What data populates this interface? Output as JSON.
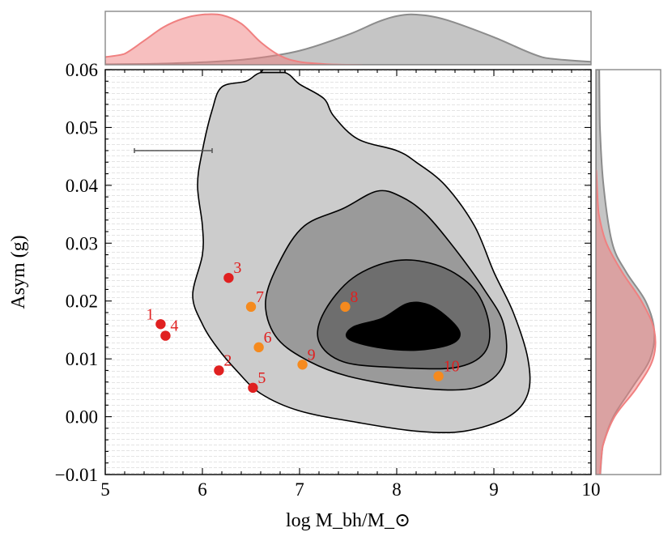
{
  "chart_data": {
    "type": "scatter",
    "title": "",
    "xlabel": "log M_bh/M_⊙",
    "ylabel": "Asym (g)",
    "xlim": [
      5,
      10
    ],
    "ylim": [
      -0.01,
      0.06
    ],
    "x_ticks": [
      "5",
      "6",
      "7",
      "8",
      "9",
      "10"
    ],
    "y_ticks": [
      "−0.01",
      "0.00",
      "0.01",
      "0.02",
      "0.03",
      "0.04",
      "0.05",
      "0.06"
    ],
    "error_bar": {
      "x_from": 5.3,
      "x_to": 6.1,
      "y": 0.046
    },
    "contours": [
      {
        "level": "outer",
        "color": "#cccccc",
        "path": [
          [
            6.6,
            0.0595
          ],
          [
            6.45,
            0.058
          ],
          [
            6.2,
            0.057
          ],
          [
            6.1,
            0.053
          ],
          [
            6.0,
            0.046
          ],
          [
            5.95,
            0.04
          ],
          [
            6.0,
            0.033
          ],
          [
            6.0,
            0.028
          ],
          [
            5.9,
            0.021
          ],
          [
            6.0,
            0.016
          ],
          [
            6.15,
            0.012
          ],
          [
            6.35,
            0.008
          ],
          [
            6.6,
            0.004
          ],
          [
            7.0,
            0.001
          ],
          [
            7.6,
            -0.001
          ],
          [
            8.2,
            -0.0025
          ],
          [
            8.7,
            -0.0025
          ],
          [
            9.15,
            0.0
          ],
          [
            9.35,
            0.004
          ],
          [
            9.35,
            0.01
          ],
          [
            9.2,
            0.018
          ],
          [
            9.0,
            0.025
          ],
          [
            8.8,
            0.033
          ],
          [
            8.5,
            0.04
          ],
          [
            8.2,
            0.044
          ],
          [
            8.0,
            0.046
          ],
          [
            7.6,
            0.048
          ],
          [
            7.35,
            0.052
          ],
          [
            7.25,
            0.055
          ],
          [
            7.0,
            0.0575
          ],
          [
            6.85,
            0.0595
          ]
        ]
      },
      {
        "level": "middle",
        "color": "#9a9a9a",
        "path": [
          [
            7.8,
            0.039
          ],
          [
            7.45,
            0.036
          ],
          [
            7.05,
            0.033
          ],
          [
            6.8,
            0.027
          ],
          [
            6.65,
            0.02
          ],
          [
            6.75,
            0.014
          ],
          [
            7.05,
            0.01
          ],
          [
            7.5,
            0.007
          ],
          [
            8.2,
            0.005
          ],
          [
            8.8,
            0.005
          ],
          [
            9.1,
            0.009
          ],
          [
            9.1,
            0.016
          ],
          [
            8.9,
            0.022
          ],
          [
            8.6,
            0.029
          ],
          [
            8.3,
            0.035
          ],
          [
            8.05,
            0.038
          ]
        ]
      },
      {
        "level": "inner",
        "color": "#6e6e6e",
        "path": [
          [
            8.0,
            0.027
          ],
          [
            7.55,
            0.024
          ],
          [
            7.25,
            0.018
          ],
          [
            7.2,
            0.013
          ],
          [
            7.45,
            0.0095
          ],
          [
            8.0,
            0.0085
          ],
          [
            8.6,
            0.0085
          ],
          [
            8.9,
            0.011
          ],
          [
            8.95,
            0.016
          ],
          [
            8.8,
            0.022
          ],
          [
            8.45,
            0.026
          ]
        ]
      },
      {
        "level": "core",
        "color": "#000000",
        "path": [
          [
            8.1,
            0.0195
          ],
          [
            7.85,
            0.017
          ],
          [
            7.55,
            0.0155
          ],
          [
            7.5,
            0.0135
          ],
          [
            7.8,
            0.012
          ],
          [
            8.2,
            0.0115
          ],
          [
            8.55,
            0.0125
          ],
          [
            8.65,
            0.0145
          ],
          [
            8.5,
            0.0175
          ],
          [
            8.3,
            0.0195
          ]
        ]
      }
    ],
    "series": [
      {
        "name": "red",
        "color": "#e02020",
        "points": [
          {
            "label": "1",
            "x": 5.57,
            "y": 0.016
          },
          {
            "label": "2",
            "x": 6.17,
            "y": 0.008
          },
          {
            "label": "3",
            "x": 6.27,
            "y": 0.024
          },
          {
            "label": "4",
            "x": 5.62,
            "y": 0.014
          },
          {
            "label": "5",
            "x": 6.52,
            "y": 0.005
          }
        ]
      },
      {
        "name": "orange",
        "color": "#f58a1e",
        "points": [
          {
            "label": "6",
            "x": 6.58,
            "y": 0.012
          },
          {
            "label": "7",
            "x": 6.5,
            "y": 0.019
          },
          {
            "label": "8",
            "x": 7.47,
            "y": 0.019
          },
          {
            "label": "9",
            "x": 7.03,
            "y": 0.009
          },
          {
            "label": "10",
            "x": 8.43,
            "y": 0.007
          }
        ]
      }
    ],
    "marginals": {
      "top": [
        {
          "name": "gray",
          "color": "#8c8c8c",
          "x": [
            5.0,
            5.5,
            6.0,
            6.5,
            7.0,
            7.5,
            7.8,
            8.0,
            8.2,
            8.5,
            9.0,
            9.5,
            10.0
          ],
          "density": [
            0.0,
            0.02,
            0.05,
            0.12,
            0.28,
            0.6,
            0.85,
            0.97,
            1.0,
            0.9,
            0.55,
            0.15,
            0.0
          ]
        },
        {
          "name": "red",
          "color": "#f08080",
          "x": [
            5.0,
            5.2,
            5.4,
            5.6,
            5.8,
            6.0,
            6.2,
            6.4,
            6.6,
            6.8,
            7.0,
            7.3,
            7.5
          ],
          "density": [
            0.08,
            0.22,
            0.48,
            0.75,
            0.92,
            1.0,
            0.99,
            0.82,
            0.45,
            0.18,
            0.06,
            0.01,
            0.0
          ]
        }
      ],
      "right": [
        {
          "name": "gray",
          "color": "#8c8c8c",
          "y": [
            -0.01,
            -0.005,
            0.0,
            0.005,
            0.01,
            0.015,
            0.02,
            0.025,
            0.03,
            0.04,
            0.05,
            0.06
          ],
          "density": [
            0.03,
            0.12,
            0.3,
            0.62,
            0.93,
            1.0,
            0.85,
            0.52,
            0.28,
            0.13,
            0.07,
            0.05
          ]
        },
        {
          "name": "red",
          "color": "#f08080",
          "y": [
            -0.01,
            -0.005,
            0.0,
            0.005,
            0.01,
            0.015,
            0.02,
            0.025,
            0.03,
            0.035,
            0.04
          ],
          "density": [
            0.03,
            0.12,
            0.32,
            0.7,
            0.98,
            1.0,
            0.78,
            0.45,
            0.18,
            0.05,
            0.0
          ]
        }
      ]
    }
  }
}
